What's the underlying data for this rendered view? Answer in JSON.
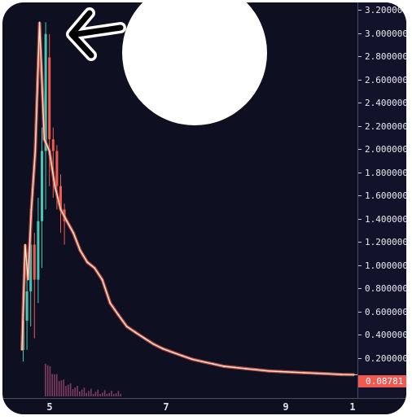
{
  "price_axis": {
    "labels": [
      "3.200000",
      "3.000000",
      "2.800000",
      "2.600000",
      "2.400000",
      "2.200000",
      "2.000000",
      "1.800000",
      "1.600000",
      "1.400000",
      "1.200000",
      "1.000000",
      "0.800000",
      "0.600000",
      "0.400000",
      "0.200000"
    ]
  },
  "last_price": {
    "value": "0.08781",
    "color": "#f05a50"
  },
  "time_axis": {
    "labels": [
      "5",
      "7",
      "9",
      "1"
    ]
  },
  "colors": {
    "background": "#0f0f22",
    "up_candle": "#40c8b4",
    "down_candle": "#f05a50",
    "price_line": "#f0e6c8",
    "volume": "#b0507a"
  },
  "annotations": {
    "arrow_icon": "left-arrow-icon",
    "circle": "white-circle-overlay"
  },
  "chart_data": {
    "type": "line",
    "title": "",
    "xlabel": "",
    "ylabel": "",
    "x_ticks": [
      "5",
      "7",
      "9",
      "1"
    ],
    "ylim": [
      0,
      3.2
    ],
    "grid": false,
    "series": [
      {
        "values": [
          0.3,
          0.6,
          1.2,
          0.9,
          1.5,
          2.0,
          3.1,
          2.1,
          2.0,
          1.7,
          1.5,
          1.4,
          1.3,
          1.15,
          1.05,
          1.0,
          0.9,
          0.7,
          0.6,
          0.5,
          0.45,
          0.4,
          0.35,
          0.31,
          0.28,
          0.25,
          0.22,
          0.2,
          0.18,
          0.16,
          0.15,
          0.14,
          0.13,
          0.12,
          0.115,
          0.11,
          0.105,
          0.1,
          0.095,
          0.09,
          0.088
        ]
      }
    ]
  }
}
